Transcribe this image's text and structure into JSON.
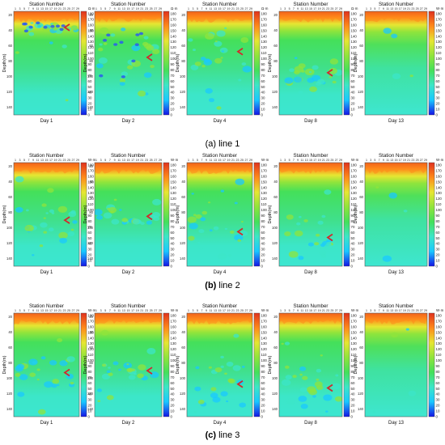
{
  "chart_data": {
    "type": "heatmap",
    "title": "",
    "x_axis_title": "Station Number",
    "x_ticks": [
      "1",
      "3",
      "5",
      "7",
      "9",
      "11",
      "13",
      "15",
      "17",
      "19",
      "21",
      "23",
      "25",
      "27",
      "29"
    ],
    "y_axis_title": "Depth(m)",
    "y_ticks": [
      "20",
      "40",
      "60",
      "80",
      "100",
      "120",
      "140"
    ],
    "ylim": [
      15,
      150
    ],
    "colorbar_unit_top": "Ω·m",
    "colorbar_unit_other": "W·m",
    "colorbar_ticks": [
      "180",
      "170",
      "160",
      "150",
      "140",
      "130",
      "120",
      "110",
      "100",
      "90",
      "80",
      "70",
      "60",
      "50",
      "40",
      "30",
      "20",
      "10",
      "0"
    ],
    "colorbar_range": [
      0,
      180
    ],
    "colormap": [
      "#1414e6",
      "#19c8ff",
      "#3ce6c8",
      "#44e05a",
      "#8fe43c",
      "#e6e632",
      "#ff8a1a",
      "#e0321e"
    ],
    "panel_labels": [
      "Day 1",
      "Day 2",
      "Day 4",
      "Day 8",
      "Day 13"
    ],
    "rows": [
      {
        "caption_prefix": "(a)",
        "caption": "line 1",
        "panels": [
          {
            "day": "Day 1",
            "unit": "Ω·m",
            "anomaly_depth_m": [
              30,
              42
            ],
            "low_resistivity_zone": "shallow band 30–42 m"
          },
          {
            "day": "Day 2",
            "unit": "Ω·m",
            "anomaly_depth_m": [
              40,
              110
            ],
            "low_resistivity_zone": "scattered 40–110 m"
          },
          {
            "day": "Day 4",
            "unit": "Ω·m",
            "anomaly_depth_m": [
              40,
              95
            ],
            "low_resistivity_zone": "scattered 40–95 m"
          },
          {
            "day": "Day 8",
            "unit": "Ω·m",
            "anomaly_depth_m": [
              80,
              110
            ],
            "low_resistivity_zone": "faint 80–110 m"
          },
          {
            "day": "Day 13",
            "unit": "W·m",
            "anomaly_depth_m": [],
            "low_resistivity_zone": "none"
          }
        ]
      },
      {
        "caption_prefix": "(b)",
        "caption": "line 2",
        "panels": [
          {
            "day": "Day 1",
            "unit": "W·m",
            "anomaly_depth_m": [
              70,
              110
            ],
            "low_resistivity_zone": "70–110 m"
          },
          {
            "day": "Day 2",
            "unit": "W·m",
            "anomaly_depth_m": [
              75,
              95
            ],
            "low_resistivity_zone": "75–95 m"
          },
          {
            "day": "Day 4",
            "unit": "W·m",
            "anomaly_depth_m": [
              80,
              130
            ],
            "low_resistivity_zone": "80–130 m"
          },
          {
            "day": "Day 8",
            "unit": "W·m",
            "anomaly_depth_m": [
              85,
              140
            ],
            "low_resistivity_zone": "85–140 m"
          },
          {
            "day": "Day 13",
            "unit": "W·m",
            "anomaly_depth_m": [],
            "low_resistivity_zone": "none"
          }
        ]
      },
      {
        "caption_prefix": "(c)",
        "caption": "line 3",
        "panels": [
          {
            "day": "Day 1",
            "unit": "W·m",
            "anomaly_depth_m": [
              75,
              110
            ],
            "low_resistivity_zone": "75–110 m"
          },
          {
            "day": "Day 2",
            "unit": "W·m",
            "anomaly_depth_m": [
              80,
              100
            ],
            "low_resistivity_zone": "80–100 m"
          },
          {
            "day": "Day 4",
            "unit": "W·m",
            "anomaly_depth_m": [
              80,
              135
            ],
            "low_resistivity_zone": "80–135 m"
          },
          {
            "day": "Day 8",
            "unit": "W·m",
            "anomaly_depth_m": [
              85,
              140
            ],
            "low_resistivity_zone": "85–140 m"
          },
          {
            "day": "Day 13",
            "unit": "W·m",
            "anomaly_depth_m": [],
            "low_resistivity_zone": "none"
          }
        ]
      }
    ]
  }
}
